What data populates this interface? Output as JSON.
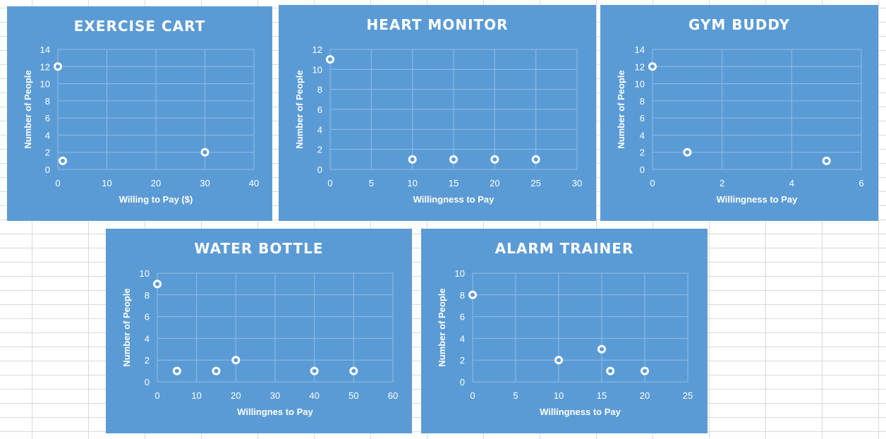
{
  "chart_data": [
    {
      "type": "scatter",
      "title": "EXERCISE CART",
      "xlabel": "Willing to Pay ($)",
      "ylabel": "Number of People",
      "xlim": [
        0,
        40
      ],
      "ylim": [
        0,
        14
      ],
      "xticks": [
        0,
        10,
        20,
        30,
        40
      ],
      "yticks": [
        0,
        2,
        4,
        6,
        8,
        10,
        12,
        14
      ],
      "grid": true,
      "legend": "none",
      "points": [
        {
          "x": 0,
          "y": 12
        },
        {
          "x": 1,
          "y": 1
        },
        {
          "x": 30,
          "y": 2
        }
      ]
    },
    {
      "type": "scatter",
      "title": "HEART MONITOR",
      "xlabel": "Willingness to Pay",
      "ylabel": "Number of People",
      "xlim": [
        0,
        30
      ],
      "ylim": [
        0,
        12
      ],
      "xticks": [
        0,
        5,
        10,
        15,
        20,
        25,
        30
      ],
      "yticks": [
        0,
        2,
        4,
        6,
        8,
        10,
        12
      ],
      "grid": true,
      "legend": "none",
      "points": [
        {
          "x": 0,
          "y": 11
        },
        {
          "x": 10,
          "y": 1
        },
        {
          "x": 15,
          "y": 1
        },
        {
          "x": 20,
          "y": 1
        },
        {
          "x": 25,
          "y": 1
        }
      ]
    },
    {
      "type": "scatter",
      "title": "GYM BUDDY",
      "xlabel": "Willingness to Pay",
      "ylabel": "Number of People",
      "xlim": [
        0,
        6
      ],
      "ylim": [
        0,
        14
      ],
      "xticks": [
        0,
        2,
        4,
        6
      ],
      "yticks": [
        0,
        2,
        4,
        6,
        8,
        10,
        12,
        14
      ],
      "grid": true,
      "legend": "none",
      "points": [
        {
          "x": 0,
          "y": 12
        },
        {
          "x": 1,
          "y": 2
        },
        {
          "x": 5,
          "y": 1
        }
      ]
    },
    {
      "type": "scatter",
      "title": "WATER BOTTLE",
      "xlabel": "Willingnes to Pay",
      "ylabel": "Number of People",
      "xlim": [
        0,
        60
      ],
      "ylim": [
        0,
        10
      ],
      "xticks": [
        0,
        10,
        20,
        30,
        40,
        50,
        60
      ],
      "yticks": [
        0,
        2,
        4,
        6,
        8,
        10
      ],
      "grid": true,
      "legend": "none",
      "points": [
        {
          "x": 0,
          "y": 9
        },
        {
          "x": 5,
          "y": 1
        },
        {
          "x": 15,
          "y": 1
        },
        {
          "x": 20,
          "y": 2
        },
        {
          "x": 40,
          "y": 1
        },
        {
          "x": 50,
          "y": 1
        }
      ]
    },
    {
      "type": "scatter",
      "title": "ALARM TRAINER",
      "xlabel": "Willingness to Pay",
      "ylabel": "Number of People",
      "xlim": [
        0,
        25
      ],
      "ylim": [
        0,
        10
      ],
      "xticks": [
        0,
        5,
        10,
        15,
        20,
        25
      ],
      "yticks": [
        0,
        2,
        4,
        6,
        8,
        10
      ],
      "grid": true,
      "legend": "none",
      "points": [
        {
          "x": 0,
          "y": 8
        },
        {
          "x": 10,
          "y": 2
        },
        {
          "x": 15,
          "y": 3
        },
        {
          "x": 16,
          "y": 1
        },
        {
          "x": 20,
          "y": 1
        }
      ]
    }
  ]
}
